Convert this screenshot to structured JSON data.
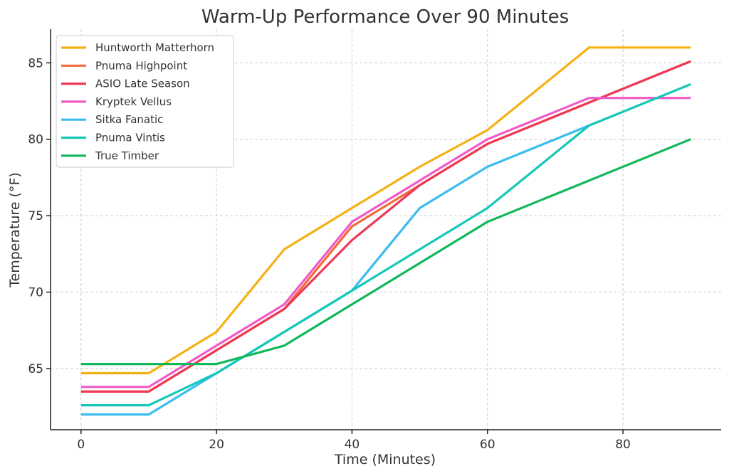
{
  "chart_data": {
    "type": "line",
    "title": "Warm-Up Performance Over 90 Minutes",
    "xlabel": "Time (Minutes)",
    "ylabel": "Temperature (°F)",
    "xlim": [
      -4.5,
      94.5
    ],
    "ylim": [
      61.0,
      87.2
    ],
    "xticks": [
      0,
      20,
      40,
      60,
      80
    ],
    "yticks": [
      65,
      70,
      75,
      80,
      85
    ],
    "grid": true,
    "legend_position": "top-left",
    "series": [
      {
        "name": "Huntworth Matterhorn",
        "color": "#f5b114",
        "x": [
          0,
          10,
          20,
          30,
          40,
          50,
          60,
          75,
          90
        ],
        "y": [
          64.7,
          64.7,
          67.4,
          72.8,
          75.5,
          78.2,
          80.6,
          86.0,
          86.0
        ]
      },
      {
        "name": "Pnuma Highpoint",
        "color": "#f26b38",
        "x": [
          0,
          10,
          20,
          30,
          40,
          50,
          60,
          75,
          90
        ],
        "y": [
          63.5,
          63.5,
          66.2,
          68.9,
          74.3,
          77.0,
          79.7,
          82.4,
          85.1
        ]
      },
      {
        "name": "ASIO Late Season",
        "color": "#ec3956",
        "x": [
          0,
          10,
          20,
          30,
          40,
          50,
          60,
          75,
          90
        ],
        "y": [
          63.5,
          63.5,
          66.2,
          68.9,
          73.4,
          77.0,
          79.7,
          82.4,
          85.1
        ]
      },
      {
        "name": "Kryptek Vellus",
        "color": "#f05ac8",
        "x": [
          0,
          10,
          20,
          30,
          40,
          50,
          60,
          75,
          90
        ],
        "y": [
          63.8,
          63.8,
          66.5,
          69.2,
          74.6,
          77.3,
          80.0,
          82.7,
          82.7
        ]
      },
      {
        "name": "Sitka Fanatic",
        "color": "#3bbcf0",
        "x": [
          0,
          10,
          20,
          40,
          50,
          60,
          75
        ],
        "y": [
          62.0,
          62.0,
          64.7,
          70.1,
          75.5,
          78.2,
          80.9
        ]
      },
      {
        "name": "Pnuma Vintis",
        "color": "#14c8b8",
        "x": [
          0,
          10,
          20,
          30,
          40,
          60,
          75,
          90
        ],
        "y": [
          62.6,
          62.6,
          64.7,
          67.4,
          70.1,
          75.5,
          80.9,
          83.6
        ]
      },
      {
        "name": "True Timber",
        "color": "#10b85a",
        "x": [
          0,
          10,
          20,
          30,
          40,
          60,
          90
        ],
        "y": [
          65.3,
          65.3,
          65.3,
          66.5,
          69.2,
          74.6,
          80.0
        ]
      }
    ]
  }
}
